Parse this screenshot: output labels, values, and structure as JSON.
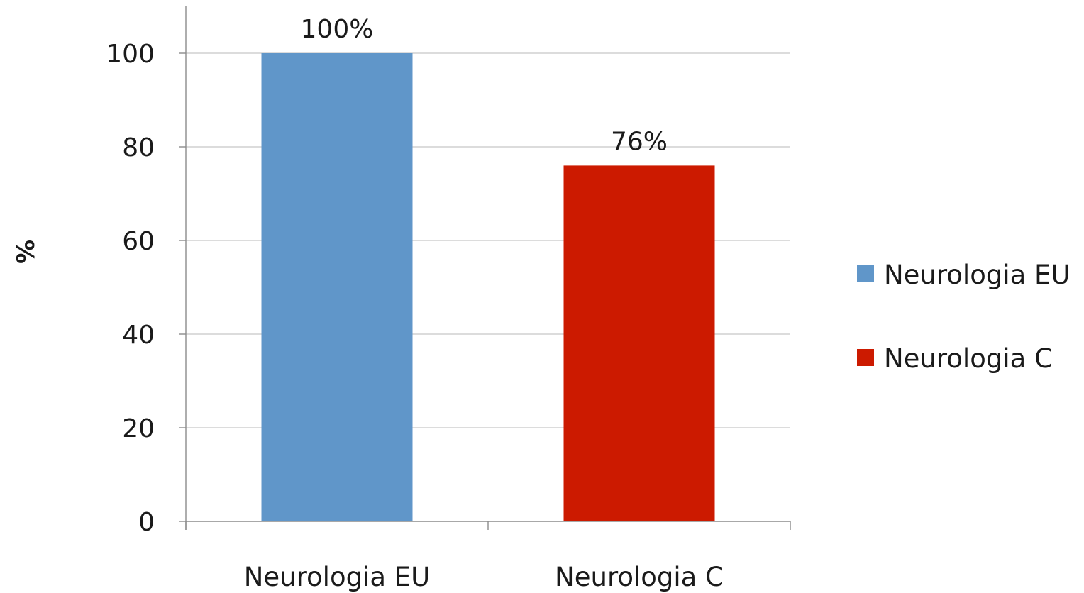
{
  "chart_data": {
    "type": "bar",
    "title": "",
    "xlabel": "",
    "ylabel": "%",
    "ylim": [
      0,
      100
    ],
    "yticks": [
      0,
      20,
      40,
      60,
      80,
      100
    ],
    "grid": true,
    "legend_position": "right",
    "categories": [
      "Neurologia EU",
      "Neurologia C"
    ],
    "values": [
      100,
      76
    ],
    "data_labels": [
      "100%",
      "76%"
    ],
    "colors": [
      "#6096c9",
      "#cc1a00"
    ],
    "legend": [
      {
        "name": "Neurologia EU",
        "color": "#6096c9"
      },
      {
        "name": "Neurologia C",
        "color": "#cc1a00"
      }
    ]
  }
}
